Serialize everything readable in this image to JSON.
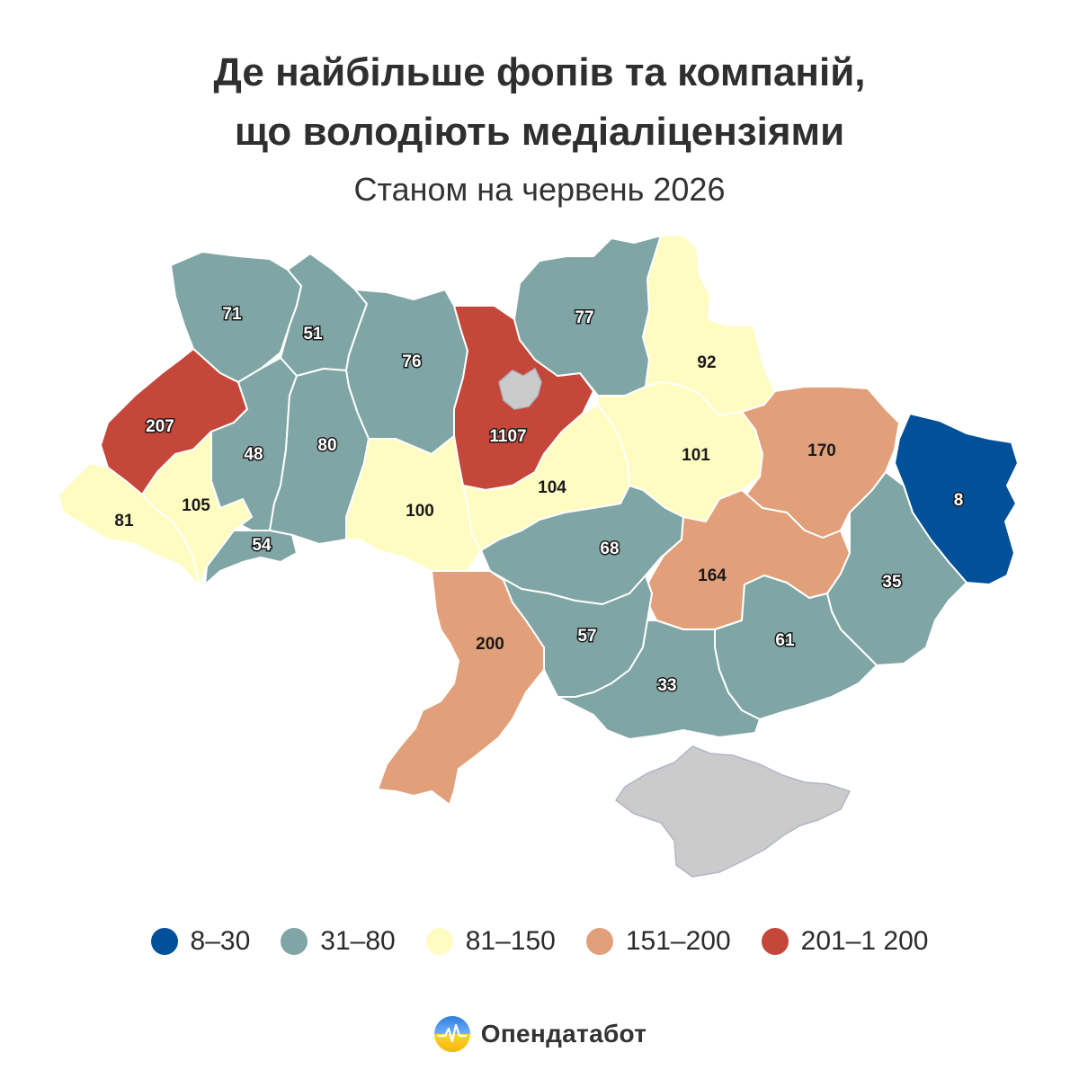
{
  "title_line1": "Де найбільше фопів та компаній,",
  "title_line2": "що володіють медіаліцензіями",
  "subtitle": "Станом на червень 2026",
  "colors": {
    "bin1": "#00509a",
    "bin2": "#7fa5a5",
    "bin3": "#fffcc2",
    "bin4": "#e1a07a",
    "bin5": "#c5473a",
    "nodata": "#cbcbcb"
  },
  "legend": [
    {
      "label": "8–30",
      "color": "#00509a"
    },
    {
      "label": "31–80",
      "color": "#7fa5a5"
    },
    {
      "label": "81–150",
      "color": "#fffcc2"
    },
    {
      "label": "151–200",
      "color": "#e1a07a"
    },
    {
      "label": "201–1 200",
      "color": "#c5473a"
    }
  ],
  "regions": [
    {
      "id": "volyn",
      "value": 71
    },
    {
      "id": "rivne",
      "value": 51
    },
    {
      "id": "zhytomyr",
      "value": 76
    },
    {
      "id": "kyiv-oblast",
      "value": 1107
    },
    {
      "id": "chernihiv",
      "value": 77
    },
    {
      "id": "sumy",
      "value": 92
    },
    {
      "id": "lviv",
      "value": 207
    },
    {
      "id": "ternopil",
      "value": 48
    },
    {
      "id": "khmelnytskyi",
      "value": 80
    },
    {
      "id": "zakarpattia",
      "value": 81
    },
    {
      "id": "ivano-frankivsk",
      "value": 105
    },
    {
      "id": "chernivtsi",
      "value": 54
    },
    {
      "id": "vinnytsia",
      "value": 100
    },
    {
      "id": "cherkasy",
      "value": 104
    },
    {
      "id": "poltava",
      "value": 101
    },
    {
      "id": "kharkiv",
      "value": 170
    },
    {
      "id": "luhansk",
      "value": 8
    },
    {
      "id": "kirovohrad",
      "value": 68
    },
    {
      "id": "dnipro",
      "value": 164
    },
    {
      "id": "donetsk",
      "value": 35
    },
    {
      "id": "odesa",
      "value": 200
    },
    {
      "id": "mykolaiv",
      "value": 57
    },
    {
      "id": "zaporizhzhia",
      "value": 61
    },
    {
      "id": "kherson",
      "value": 33
    }
  ],
  "brand": {
    "name": "Опендатабот",
    "icon": "opendatabot-logo-icon"
  }
}
